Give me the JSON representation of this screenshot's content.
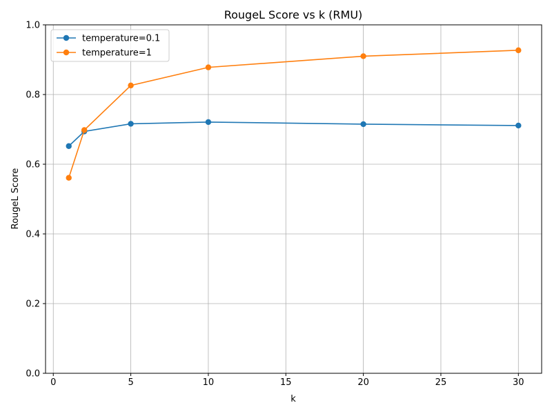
{
  "chart_data": {
    "type": "line",
    "title": "RougeL Score vs k (RMU)",
    "xlabel": "k",
    "ylabel": "RougeL Score",
    "xlim": [
      -0.5,
      31.5
    ],
    "ylim": [
      0.0,
      1.0
    ],
    "xticks": [
      0,
      5,
      10,
      15,
      20,
      25,
      30
    ],
    "xtick_labels": [
      "0",
      "5",
      "10",
      "15",
      "20",
      "25",
      "30"
    ],
    "yticks": [
      0.0,
      0.2,
      0.4,
      0.6,
      0.8,
      1.0
    ],
    "ytick_labels": [
      "0.0",
      "0.2",
      "0.4",
      "0.6",
      "0.8",
      "1.0"
    ],
    "grid": true,
    "legend_position": "top-left",
    "x": [
      1,
      2,
      5,
      10,
      20,
      30
    ],
    "series": [
      {
        "name": "temperature=0.1",
        "color": "#1f77b4",
        "values": [
          0.652,
          0.694,
          0.716,
          0.721,
          0.715,
          0.711
        ]
      },
      {
        "name": "temperature=1",
        "color": "#ff7f0e",
        "values": [
          0.561,
          0.698,
          0.826,
          0.878,
          0.91,
          0.927
        ]
      }
    ]
  }
}
